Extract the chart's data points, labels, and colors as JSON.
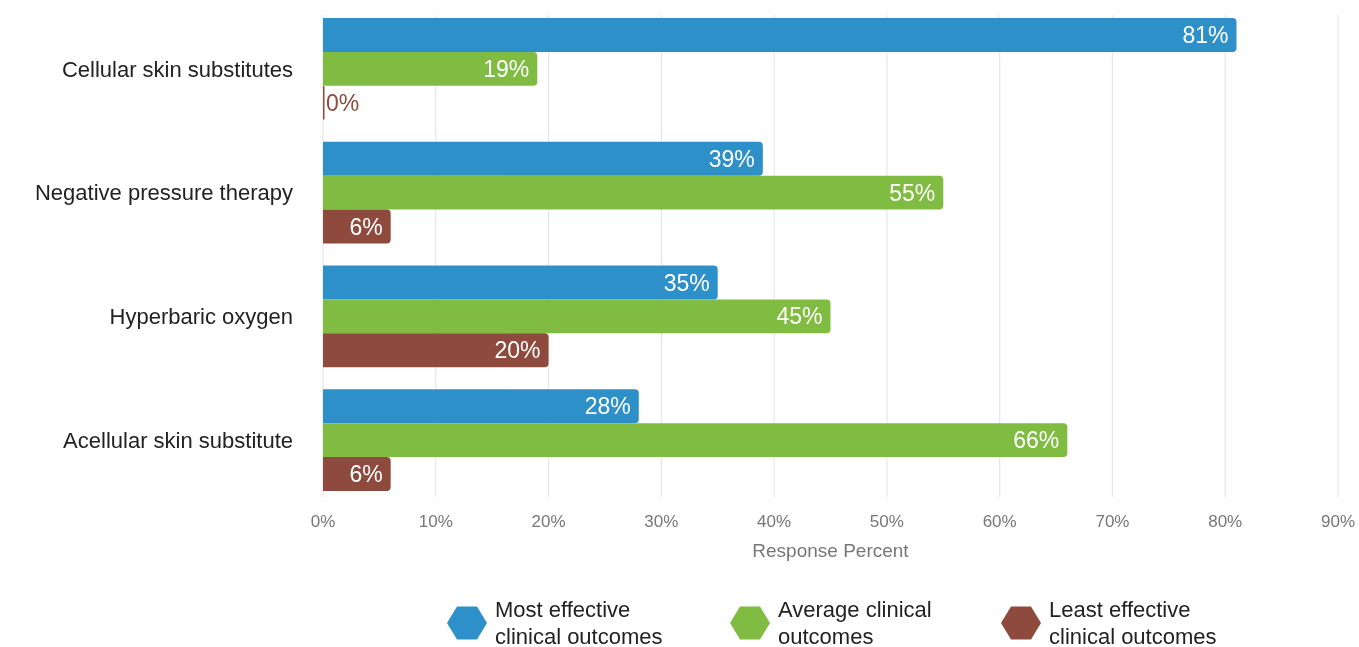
{
  "chart_data": {
    "type": "bar",
    "orientation": "horizontal",
    "categories": [
      "Cellular skin substitutes",
      "Negative pressure therapy",
      "Hyperbaric oxygen",
      "Acellular skin substitute"
    ],
    "series": [
      {
        "name": "Most effective clinical outcomes",
        "color": "#2e90c9",
        "values": [
          81,
          39,
          35,
          28
        ],
        "value_labels": [
          "81%",
          "39%",
          "35%",
          "28%"
        ]
      },
      {
        "name": "Average clinical outcomes",
        "color": "#80bc41",
        "values": [
          19,
          55,
          45,
          66
        ],
        "value_labels": [
          "19%",
          "55%",
          "45%",
          "66%"
        ]
      },
      {
        "name": "Least effective clinical outcomes",
        "color": "#8e4a3d",
        "values": [
          0,
          6,
          20,
          6
        ],
        "value_labels": [
          "0%",
          "6%",
          "20%",
          "6%"
        ]
      }
    ],
    "xlabel": "Response Percent",
    "xlim": [
      0,
      90
    ],
    "xticks": [
      {
        "value": 0,
        "label": "0%"
      },
      {
        "value": 10,
        "label": "10%"
      },
      {
        "value": 20,
        "label": "20%"
      },
      {
        "value": 30,
        "label": "30%"
      },
      {
        "value": 40,
        "label": "40%"
      },
      {
        "value": 50,
        "label": "50%"
      },
      {
        "value": 60,
        "label": "60%"
      },
      {
        "value": 70,
        "label": "70%"
      },
      {
        "value": 80,
        "label": "80%"
      },
      {
        "value": 90,
        "label": "90%"
      }
    ],
    "grid": "x",
    "legend": "bottom"
  }
}
